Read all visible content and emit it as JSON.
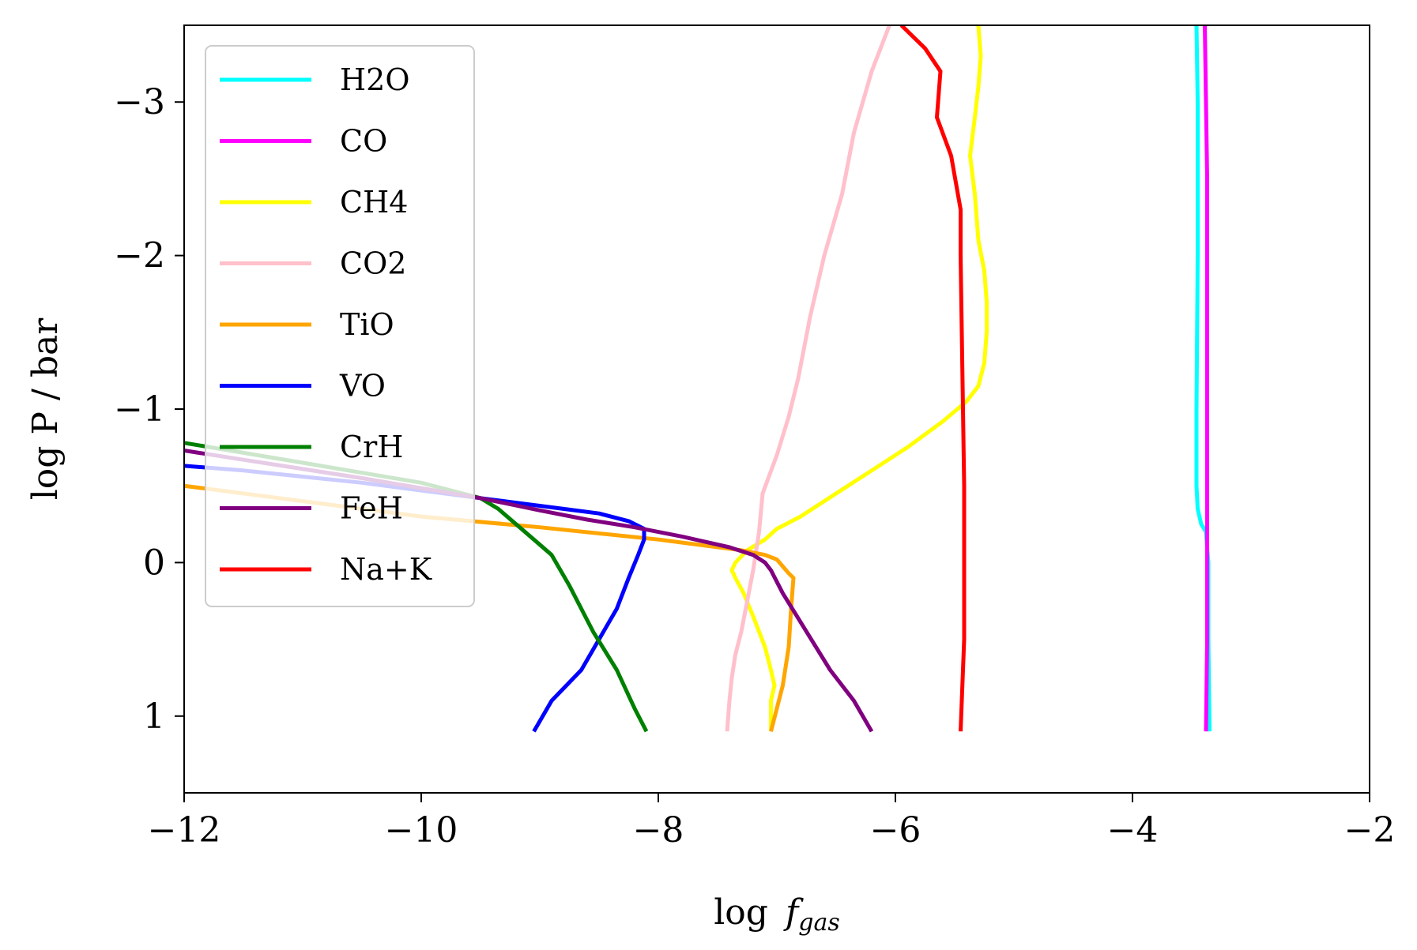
{
  "chart_data": {
    "type": "line",
    "title": "",
    "xlabel": "log  f_gas",
    "xlabel_main": "log",
    "xlabel_var": "f",
    "xlabel_sub": "gas",
    "ylabel": "log P  / bar",
    "xlim": [
      -12,
      -2
    ],
    "ylim": [
      1.5,
      -3.5
    ],
    "y_inverted": true,
    "xticks": [
      -12,
      -10,
      -8,
      -6,
      -4,
      -2
    ],
    "yticks": [
      -3,
      -2,
      -1,
      0,
      1
    ],
    "xtick_labels": [
      "−12",
      "−10",
      "−8",
      "−6",
      "−4",
      "−2"
    ],
    "ytick_labels": [
      "−3",
      "−2",
      "−1",
      "0",
      "1"
    ],
    "grid": false,
    "legend_position": "upper-left",
    "series": [
      {
        "name": "H2O",
        "color": "#00ffff",
        "points": [
          [
            -3.35,
            1.1
          ],
          [
            -3.36,
            0.5
          ],
          [
            -3.36,
            0
          ],
          [
            -3.38,
            -0.2
          ],
          [
            -3.42,
            -0.25
          ],
          [
            -3.45,
            -0.35
          ],
          [
            -3.46,
            -0.5
          ],
          [
            -3.46,
            -1
          ],
          [
            -3.45,
            -2
          ],
          [
            -3.45,
            -3
          ],
          [
            -3.46,
            -3.5
          ]
        ]
      },
      {
        "name": "CO",
        "color": "#ff00ff",
        "points": [
          [
            -3.38,
            1.1
          ],
          [
            -3.37,
            0.5
          ],
          [
            -3.37,
            0
          ],
          [
            -3.37,
            -0.5
          ],
          [
            -3.37,
            -1
          ],
          [
            -3.37,
            -1.5
          ],
          [
            -3.37,
            -2
          ],
          [
            -3.37,
            -2.5
          ],
          [
            -3.38,
            -3
          ],
          [
            -3.39,
            -3.5
          ]
        ]
      },
      {
        "name": "CH4",
        "color": "#ffff00",
        "points": [
          [
            -7.05,
            1.1
          ],
          [
            -7.05,
            0.9
          ],
          [
            -7.02,
            0.8
          ],
          [
            -7.05,
            0.7
          ],
          [
            -7.1,
            0.55
          ],
          [
            -7.2,
            0.35
          ],
          [
            -7.28,
            0.2
          ],
          [
            -7.35,
            0.1
          ],
          [
            -7.38,
            0.05
          ],
          [
            -7.35,
            0
          ],
          [
            -7.25,
            -0.08
          ],
          [
            -7.1,
            -0.15
          ],
          [
            -7.0,
            -0.22
          ],
          [
            -6.8,
            -0.3
          ],
          [
            -6.5,
            -0.45
          ],
          [
            -6.2,
            -0.6
          ],
          [
            -5.9,
            -0.75
          ],
          [
            -5.6,
            -0.92
          ],
          [
            -5.4,
            -1.05
          ],
          [
            -5.3,
            -1.15
          ],
          [
            -5.25,
            -1.3
          ],
          [
            -5.23,
            -1.5
          ],
          [
            -5.23,
            -1.7
          ],
          [
            -5.25,
            -1.9
          ],
          [
            -5.3,
            -2.1
          ],
          [
            -5.33,
            -2.4
          ],
          [
            -5.37,
            -2.65
          ],
          [
            -5.33,
            -2.9
          ],
          [
            -5.3,
            -3.1
          ],
          [
            -5.28,
            -3.3
          ],
          [
            -5.3,
            -3.5
          ]
        ]
      },
      {
        "name": "CO2",
        "color": "#ffc0cb",
        "points": [
          [
            -7.42,
            1.1
          ],
          [
            -7.4,
            0.9
          ],
          [
            -7.38,
            0.75
          ],
          [
            -7.35,
            0.6
          ],
          [
            -7.3,
            0.45
          ],
          [
            -7.25,
            0.25
          ],
          [
            -7.2,
            0.05
          ],
          [
            -7.15,
            -0.2
          ],
          [
            -7.12,
            -0.45
          ],
          [
            -7.0,
            -0.7
          ],
          [
            -6.9,
            -0.95
          ],
          [
            -6.82,
            -1.2
          ],
          [
            -6.72,
            -1.6
          ],
          [
            -6.6,
            -2.0
          ],
          [
            -6.45,
            -2.4
          ],
          [
            -6.35,
            -2.8
          ],
          [
            -6.2,
            -3.2
          ],
          [
            -6.05,
            -3.5
          ]
        ]
      },
      {
        "name": "TiO",
        "color": "#ffa500",
        "points": [
          [
            -7.05,
            1.1
          ],
          [
            -6.95,
            0.8
          ],
          [
            -6.9,
            0.55
          ],
          [
            -6.88,
            0.3
          ],
          [
            -6.86,
            0.1
          ],
          [
            -6.9,
            0.07
          ],
          [
            -7.0,
            -0.02
          ],
          [
            -7.1,
            -0.05
          ],
          [
            -7.3,
            -0.08
          ],
          [
            -8,
            -0.15
          ],
          [
            -9,
            -0.23
          ],
          [
            -10,
            -0.3
          ],
          [
            -11,
            -0.4
          ],
          [
            -12,
            -0.5
          ]
        ]
      },
      {
        "name": "VO",
        "color": "#0000ff",
        "points": [
          [
            -9.05,
            1.1
          ],
          [
            -8.9,
            0.9
          ],
          [
            -8.65,
            0.7
          ],
          [
            -8.5,
            0.5
          ],
          [
            -8.35,
            0.3
          ],
          [
            -8.25,
            0.1
          ],
          [
            -8.17,
            -0.05
          ],
          [
            -8.12,
            -0.15
          ],
          [
            -8.12,
            -0.22
          ],
          [
            -8.25,
            -0.27
          ],
          [
            -8.5,
            -0.32
          ],
          [
            -8.8,
            -0.35
          ],
          [
            -9.5,
            -0.42
          ],
          [
            -10.5,
            -0.52
          ],
          [
            -11.5,
            -0.6
          ],
          [
            -12,
            -0.63
          ]
        ]
      },
      {
        "name": "CrH",
        "color": "#008000",
        "points": [
          [
            -8.1,
            1.1
          ],
          [
            -8.2,
            0.95
          ],
          [
            -8.35,
            0.7
          ],
          [
            -8.55,
            0.45
          ],
          [
            -8.75,
            0.15
          ],
          [
            -8.9,
            -0.05
          ],
          [
            -9.05,
            -0.15
          ],
          [
            -9.2,
            -0.25
          ],
          [
            -9.35,
            -0.35
          ],
          [
            -9.5,
            -0.42
          ],
          [
            -10,
            -0.52
          ],
          [
            -11,
            -0.65
          ],
          [
            -12,
            -0.78
          ]
        ]
      },
      {
        "name": "FeH",
        "color": "#800080",
        "points": [
          [
            -6.2,
            1.1
          ],
          [
            -6.35,
            0.9
          ],
          [
            -6.55,
            0.7
          ],
          [
            -6.75,
            0.45
          ],
          [
            -6.95,
            0.2
          ],
          [
            -7.05,
            0.05
          ],
          [
            -7.1,
            0
          ],
          [
            -7.2,
            -0.05
          ],
          [
            -7.4,
            -0.1
          ],
          [
            -7.8,
            -0.17
          ],
          [
            -8.2,
            -0.23
          ],
          [
            -8.6,
            -0.28
          ],
          [
            -9,
            -0.34
          ],
          [
            -9.5,
            -0.42
          ],
          [
            -10.5,
            -0.55
          ],
          [
            -11.5,
            -0.67
          ],
          [
            -12,
            -0.73
          ]
        ]
      },
      {
        "name": "Na+K",
        "color": "#ff0000",
        "points": [
          [
            -5.45,
            1.1
          ],
          [
            -5.44,
            0.9
          ],
          [
            -5.43,
            0.7
          ],
          [
            -5.42,
            0.5
          ],
          [
            -5.42,
            0.3
          ],
          [
            -5.42,
            0
          ],
          [
            -5.42,
            -0.5
          ],
          [
            -5.43,
            -1
          ],
          [
            -5.44,
            -1.5
          ],
          [
            -5.45,
            -2.0
          ],
          [
            -5.45,
            -2.3
          ],
          [
            -5.53,
            -2.65
          ],
          [
            -5.65,
            -2.9
          ],
          [
            -5.62,
            -3.2
          ],
          [
            -5.75,
            -3.35
          ],
          [
            -5.95,
            -3.5
          ]
        ]
      }
    ]
  }
}
